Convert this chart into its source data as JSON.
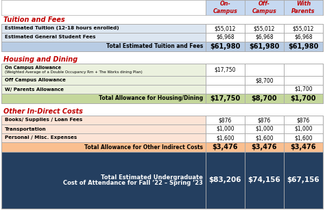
{
  "col_headers": [
    "On-\nCampus",
    "Off-\nCampus",
    "With\nParents"
  ],
  "col_header_color": "#c6d9f1",
  "col_header_text_color": "#c00000",
  "section1_title": "Tuition and Fees",
  "section1_rows": [
    [
      "Estimated Tuition (12-18 hours enrolled)",
      "$55,012",
      "$55,012",
      "$55,012"
    ],
    [
      "Estimated General Student Fees",
      "$6,968",
      "$6,968",
      "$6,968"
    ]
  ],
  "section1_total_label": "Total Estimated Tuition and Fees",
  "section1_total_values": [
    "$61,980",
    "$61,980",
    "$61,980"
  ],
  "section1_bg": "#dce6f1",
  "section1_total_bg": "#b8cce4",
  "section2_title": "Housing and Dining",
  "section2_rows_labels": [
    "On Campus Allowance\n(Weighted Average of a Double Occupancy Rm + The Works dining Plan)",
    "Off Campus Allowance",
    "W/ Parents Allowance"
  ],
  "section2_rows_vals": [
    [
      "$17,750",
      "",
      ""
    ],
    [
      "",
      "$8,700",
      ""
    ],
    [
      "",
      "",
      "$1,700"
    ]
  ],
  "section2_total_label": "Total Allowance for Housing/Dining",
  "section2_total_values": [
    "$17,750",
    "$8,700",
    "$1,700"
  ],
  "section2_bg": "#ebf1de",
  "section2_total_bg": "#c4d79b",
  "section3_title": "Other In-Direct Costs",
  "section3_rows": [
    [
      "Books/ Supplies / Loan Fees",
      "$876",
      "$876",
      "$876"
    ],
    [
      "Transportation",
      "$1,000",
      "$1,000",
      "$1,000"
    ],
    [
      "Personal / Misc. Expenses",
      "$1,600",
      "$1,600",
      "$1,600"
    ]
  ],
  "section3_total_label": "Total Allowance for Other Indirect Costs",
  "section3_total_values": [
    "$3,476",
    "$3,476",
    "$3,476"
  ],
  "section3_bg": "#fce4d6",
  "section3_total_bg": "#fabf8f",
  "grand_total_line1": "Total Estimated Undergraduate",
  "grand_total_line2": "Cost of Attendance for Fall ’22 – Spring ’23",
  "grand_total_values": [
    "$83,206",
    "$74,156",
    "$67,156"
  ],
  "grand_total_bg": "#243f60",
  "grand_total_text_color": "#ffffff",
  "section_title_color": "#c00000",
  "border_color": "#aaaaaa"
}
